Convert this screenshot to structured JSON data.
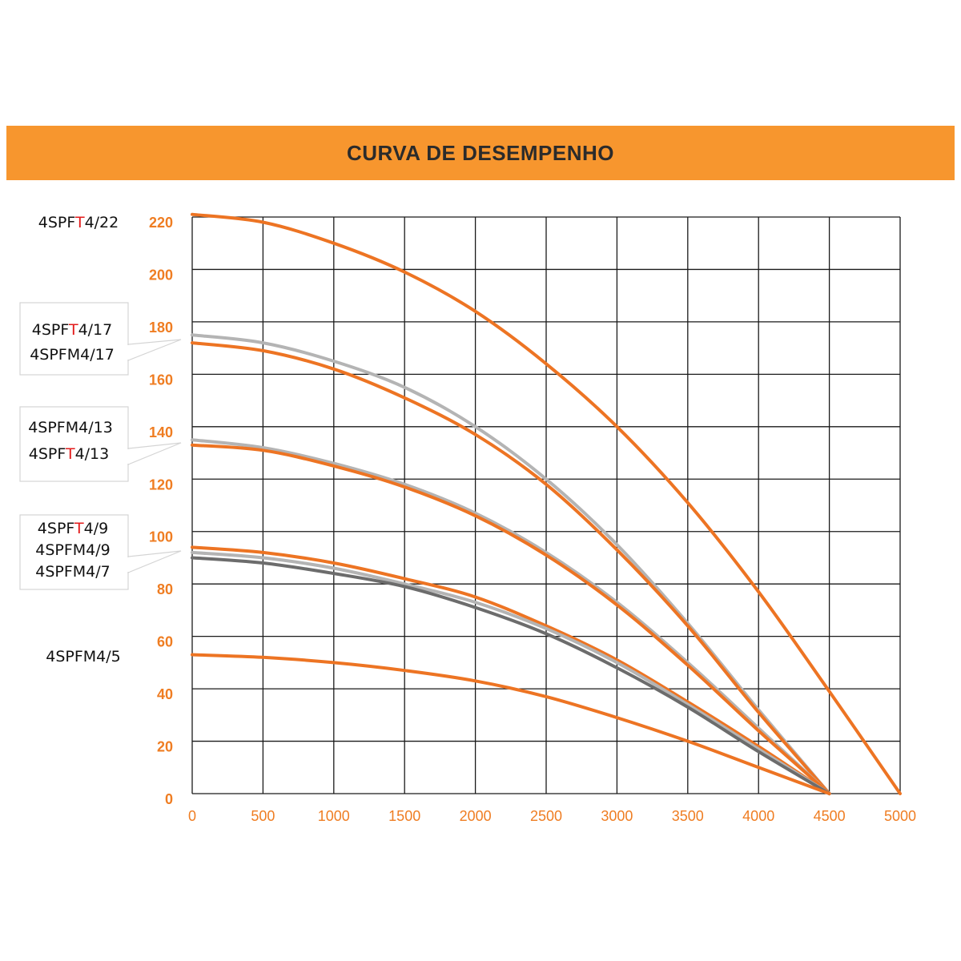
{
  "title": "CURVA DE DESEMPENHO",
  "colors": {
    "header_bg": "#f7962e",
    "orange_curve": "#ed7423",
    "light_gray_curve": "#b4b4b4",
    "dark_gray_curve": "#6c6c6c",
    "tick_text": "#ef7d22",
    "highlight_T": "#e31b1b"
  },
  "labels": [
    {
      "id": "lbl-22",
      "lines": [
        {
          "prefix": "4SPF",
          "hl": "T",
          "suffix": "4/22"
        }
      ]
    },
    {
      "id": "lbl-17",
      "lines": [
        {
          "prefix": "4SPF",
          "hl": "T",
          "suffix": "4/17"
        },
        {
          "prefix": "4SPFM4/17",
          "hl": "",
          "suffix": ""
        }
      ]
    },
    {
      "id": "lbl-13",
      "lines": [
        {
          "prefix": "4SPFM4/13",
          "hl": "",
          "suffix": ""
        },
        {
          "prefix": "4SPF",
          "hl": "T",
          "suffix": "4/13"
        }
      ]
    },
    {
      "id": "lbl-9",
      "lines": [
        {
          "prefix": "4SPF",
          "hl": "T",
          "suffix": "4/9"
        },
        {
          "prefix": "4SPFM4/9",
          "hl": "",
          "suffix": ""
        },
        {
          "prefix": "4SPFM4/7",
          "hl": "",
          "suffix": ""
        }
      ]
    },
    {
      "id": "lbl-5",
      "lines": [
        {
          "prefix": "4SPFM4/5",
          "hl": "",
          "suffix": ""
        }
      ]
    }
  ],
  "chart_data": {
    "type": "line",
    "title": "CURVA DE DESEMPENHO",
    "xlabel": "",
    "ylabel": "",
    "xlim": [
      0,
      5000
    ],
    "ylim": [
      0,
      220
    ],
    "x_ticks": [
      0,
      500,
      1000,
      1500,
      2000,
      2500,
      3000,
      3500,
      4000,
      4500,
      5000
    ],
    "y_ticks": [
      0,
      20,
      40,
      60,
      80,
      100,
      120,
      140,
      160,
      180,
      200,
      220
    ],
    "grid": true,
    "series": [
      {
        "name": "4SPFT4/22",
        "color": "orange",
        "x": [
          0,
          500,
          1000,
          1500,
          2000,
          2500,
          3000,
          3500,
          4000,
          4500,
          5000
        ],
        "y": [
          221,
          218,
          210,
          199,
          184,
          164,
          140,
          111,
          77,
          39,
          0
        ]
      },
      {
        "name": "4SPFM4/17",
        "color": "light_gray",
        "x": [
          0,
          500,
          1000,
          1500,
          2000,
          2500,
          3000,
          3500,
          4000,
          4500
        ],
        "y": [
          175,
          172,
          165,
          155,
          140,
          120,
          95,
          65,
          32,
          0
        ]
      },
      {
        "name": "4SPFT4/17",
        "color": "orange",
        "x": [
          0,
          500,
          1000,
          1500,
          2000,
          2500,
          3000,
          3500,
          4000,
          4500
        ],
        "y": [
          172,
          169,
          162,
          151,
          137,
          118,
          93,
          64,
          31,
          0
        ]
      },
      {
        "name": "4SPFM4/13",
        "color": "light_gray",
        "x": [
          0,
          500,
          1000,
          1500,
          2000,
          2500,
          3000,
          3500,
          4000,
          4500
        ],
        "y": [
          135,
          132,
          126,
          118,
          107,
          92,
          73,
          50,
          25,
          0
        ]
      },
      {
        "name": "4SPFT4/13",
        "color": "orange",
        "x": [
          0,
          500,
          1000,
          1500,
          2000,
          2500,
          3000,
          3500,
          4000,
          4500
        ],
        "y": [
          133,
          131,
          125,
          117,
          106,
          91,
          72,
          49,
          24,
          0
        ]
      },
      {
        "name": "4SPFT4/9",
        "color": "orange",
        "x": [
          0,
          500,
          1000,
          1500,
          2000,
          2500,
          3000,
          3500,
          4000,
          4500
        ],
        "y": [
          94,
          92,
          88,
          82,
          75,
          64,
          51,
          35,
          18,
          0
        ]
      },
      {
        "name": "4SPFM4/9",
        "color": "light_gray",
        "x": [
          0,
          500,
          1000,
          1500,
          2000,
          2500,
          3000,
          3500,
          4000,
          4500
        ],
        "y": [
          92,
          90,
          86,
          80,
          73,
          63,
          50,
          34,
          17,
          0
        ]
      },
      {
        "name": "4SPFM4/7",
        "color": "dark_gray",
        "x": [
          0,
          500,
          1000,
          1500,
          2000,
          2500,
          3000,
          3500,
          4000,
          4500
        ],
        "y": [
          90,
          88,
          84,
          79,
          71,
          61,
          48,
          33,
          16,
          0
        ]
      },
      {
        "name": "4SPFM4/5",
        "color": "orange",
        "x": [
          0,
          500,
          1000,
          1500,
          2000,
          2500,
          3000,
          3500,
          4000,
          4500
        ],
        "y": [
          53,
          52,
          50,
          47,
          43,
          37,
          29,
          20,
          10,
          0
        ]
      }
    ]
  }
}
